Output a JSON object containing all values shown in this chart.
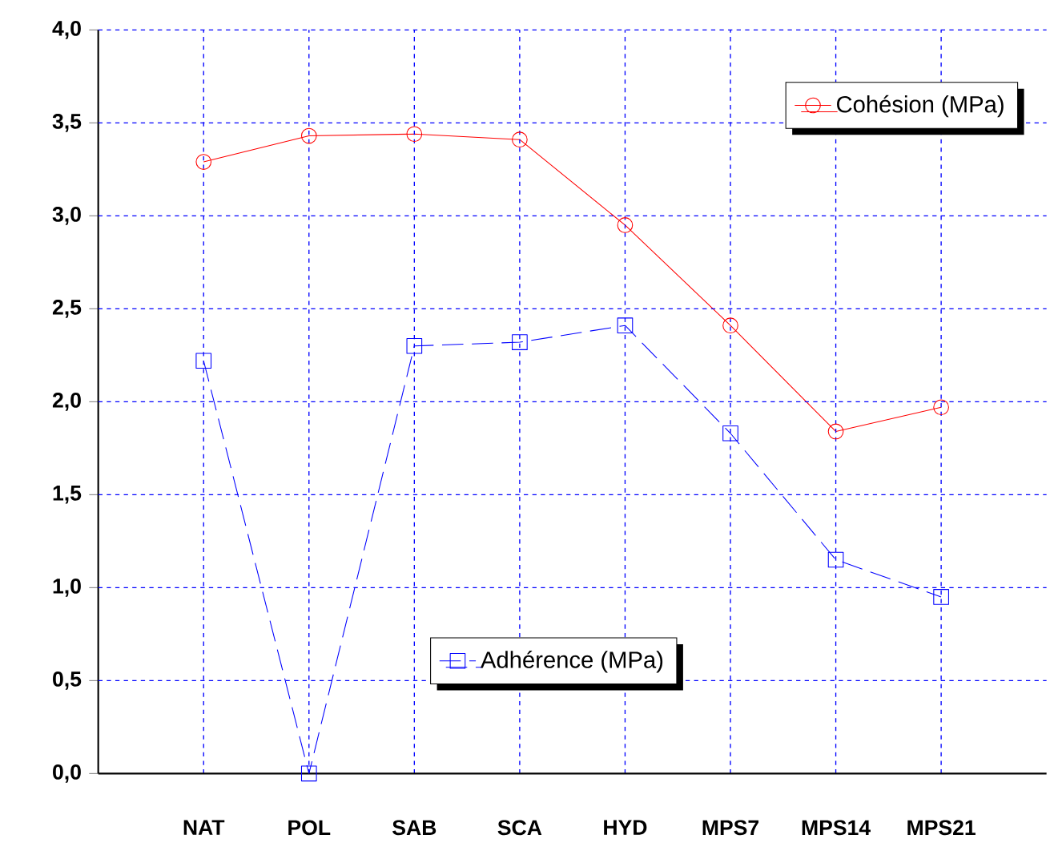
{
  "chart_data": {
    "type": "line",
    "categories": [
      "NAT",
      "POL",
      "SAB",
      "SCA",
      "HYD",
      "MPS7",
      "MPS14",
      "MPS21"
    ],
    "series": [
      {
        "name": "Cohésion (MPa)",
        "color": "#ff0000",
        "marker": "circle",
        "line_style": "solid",
        "values": [
          3.29,
          3.43,
          3.44,
          3.41,
          2.95,
          2.41,
          1.84,
          1.97
        ]
      },
      {
        "name": "Adhérence (MPa)",
        "color": "#0000ff",
        "marker": "square",
        "line_style": "dashed",
        "values": [
          2.22,
          0,
          2.3,
          2.32,
          2.41,
          1.83,
          1.15,
          0.95
        ]
      }
    ],
    "ylim": [
      0,
      4
    ],
    "yticks": [
      {
        "value": 0,
        "label": "0,0"
      },
      {
        "value": 0.5,
        "label": "0,5"
      },
      {
        "value": 1,
        "label": "1,0"
      },
      {
        "value": 1.5,
        "label": "1,5"
      },
      {
        "value": 2,
        "label": "2,0"
      },
      {
        "value": 2.5,
        "label": "2,5"
      },
      {
        "value": 3,
        "label": "3,0"
      },
      {
        "value": 3.5,
        "label": "3,5"
      },
      {
        "value": 4,
        "label": "4,0"
      }
    ],
    "grid": true,
    "legend": "top right"
  }
}
